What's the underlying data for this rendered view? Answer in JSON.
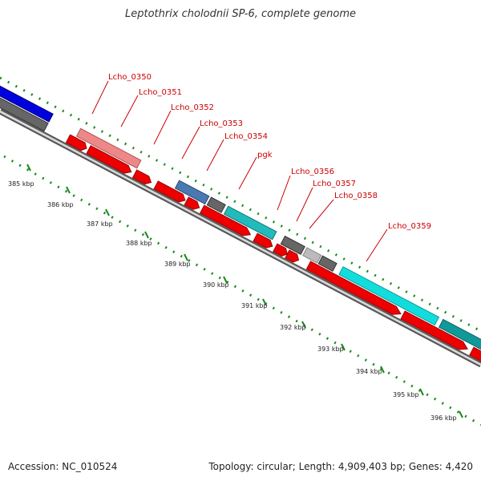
{
  "title": "Leptothrix cholodnii SP-6, complete genome",
  "footer": {
    "accession": "Accession: NC_010524",
    "summary": "Topology: circular; Length: 4,909,403 bp; Genes: 4,420"
  },
  "colors": {
    "cds": "#ee0000",
    "backbone": "#888888",
    "ticks": "#1a8a1a",
    "label": "#cc0000",
    "gray_gene": "#666666",
    "light_gray_gene": "#bbbbbb",
    "blue_gene": "#0000dd",
    "steel_blue_gene": "#4a78b0",
    "pink_gene": "#ee8888",
    "teal_gene": "#22bbbb",
    "cyan_gene": "#11dddd",
    "dark_teal_gene": "#119999"
  },
  "axis": {
    "unit": "kbp",
    "ticks": [
      "385 kbp",
      "386 kbp",
      "387 kbp",
      "388 kbp",
      "389 kbp",
      "390 kbp",
      "391 kbp",
      "392 kbp",
      "393 kbp",
      "394 kbp",
      "395 kbp",
      "396 kbp"
    ]
  },
  "gene_labels": [
    "Lcho_0350",
    "Lcho_0351",
    "Lcho_0352",
    "Lcho_0353",
    "Lcho_0354",
    "pgk",
    "Lcho_0356",
    "Lcho_0357",
    "Lcho_0358",
    "Lcho_0359"
  ]
}
